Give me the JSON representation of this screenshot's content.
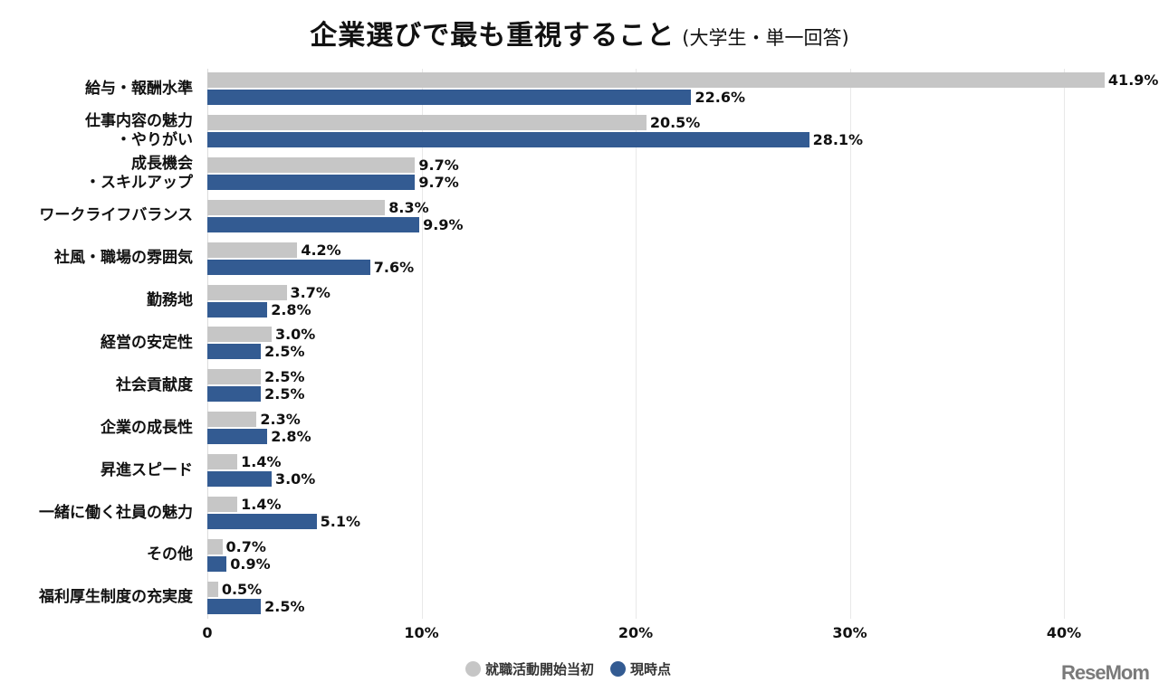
{
  "title": {
    "main": "企業選びで最も重視すること",
    "sub": "(大学生・単一回答)"
  },
  "legend": [
    {
      "label": "就職活動開始当初",
      "color": "#c6c6c6"
    },
    {
      "label": "現時点",
      "color": "#335b92"
    }
  ],
  "axis": {
    "ticks": [
      "0",
      "10%",
      "20%",
      "30%",
      "40%"
    ]
  },
  "logo": "ReseMom",
  "chart_data": {
    "type": "bar",
    "orientation": "horizontal",
    "title": "企業選びで最も重視すること (大学生・単一回答)",
    "xlabel": "",
    "ylabel": "",
    "xlim": [
      0,
      44
    ],
    "x_ticks": [
      "0",
      "10%",
      "20%",
      "30%",
      "40%"
    ],
    "grid": "vertical",
    "legend_position": "bottom",
    "categories": [
      "給与・報酬水準",
      "仕事内容の魅力・やりがい",
      "成長機会・スキルアップ",
      "ワークライフバランス",
      "社風・職場の雰囲気",
      "勤務地",
      "経営の安定性",
      "社会貢献度",
      "企業の成長性",
      "昇進スピード",
      "一緒に働く社員の魅力",
      "その他",
      "福利厚生制度の充実度"
    ],
    "series": [
      {
        "name": "就職活動開始当初",
        "color": "#c6c6c6",
        "values": [
          41.9,
          20.5,
          9.7,
          8.3,
          4.2,
          3.7,
          3.0,
          2.5,
          2.3,
          1.4,
          1.4,
          0.7,
          0.5
        ]
      },
      {
        "name": "現時点",
        "color": "#335b92",
        "values": [
          22.6,
          28.1,
          9.7,
          9.9,
          7.6,
          2.8,
          2.5,
          2.5,
          2.8,
          3.0,
          5.1,
          0.9,
          2.5
        ]
      }
    ]
  },
  "category_labels": [
    [
      "給与・報酬水準"
    ],
    [
      "仕事内容の魅力",
      "・やりがい"
    ],
    [
      "成長機会",
      "・スキルアップ"
    ],
    [
      "ワークライフバランス"
    ],
    [
      "社風・職場の雰囲気"
    ],
    [
      "勤務地"
    ],
    [
      "経営の安定性"
    ],
    [
      "社会貢献度"
    ],
    [
      "企業の成長性"
    ],
    [
      "昇進スピード"
    ],
    [
      "一緒に働く社員の魅力"
    ],
    [
      "その他"
    ],
    [
      "福利厚生制度の充実度"
    ]
  ]
}
